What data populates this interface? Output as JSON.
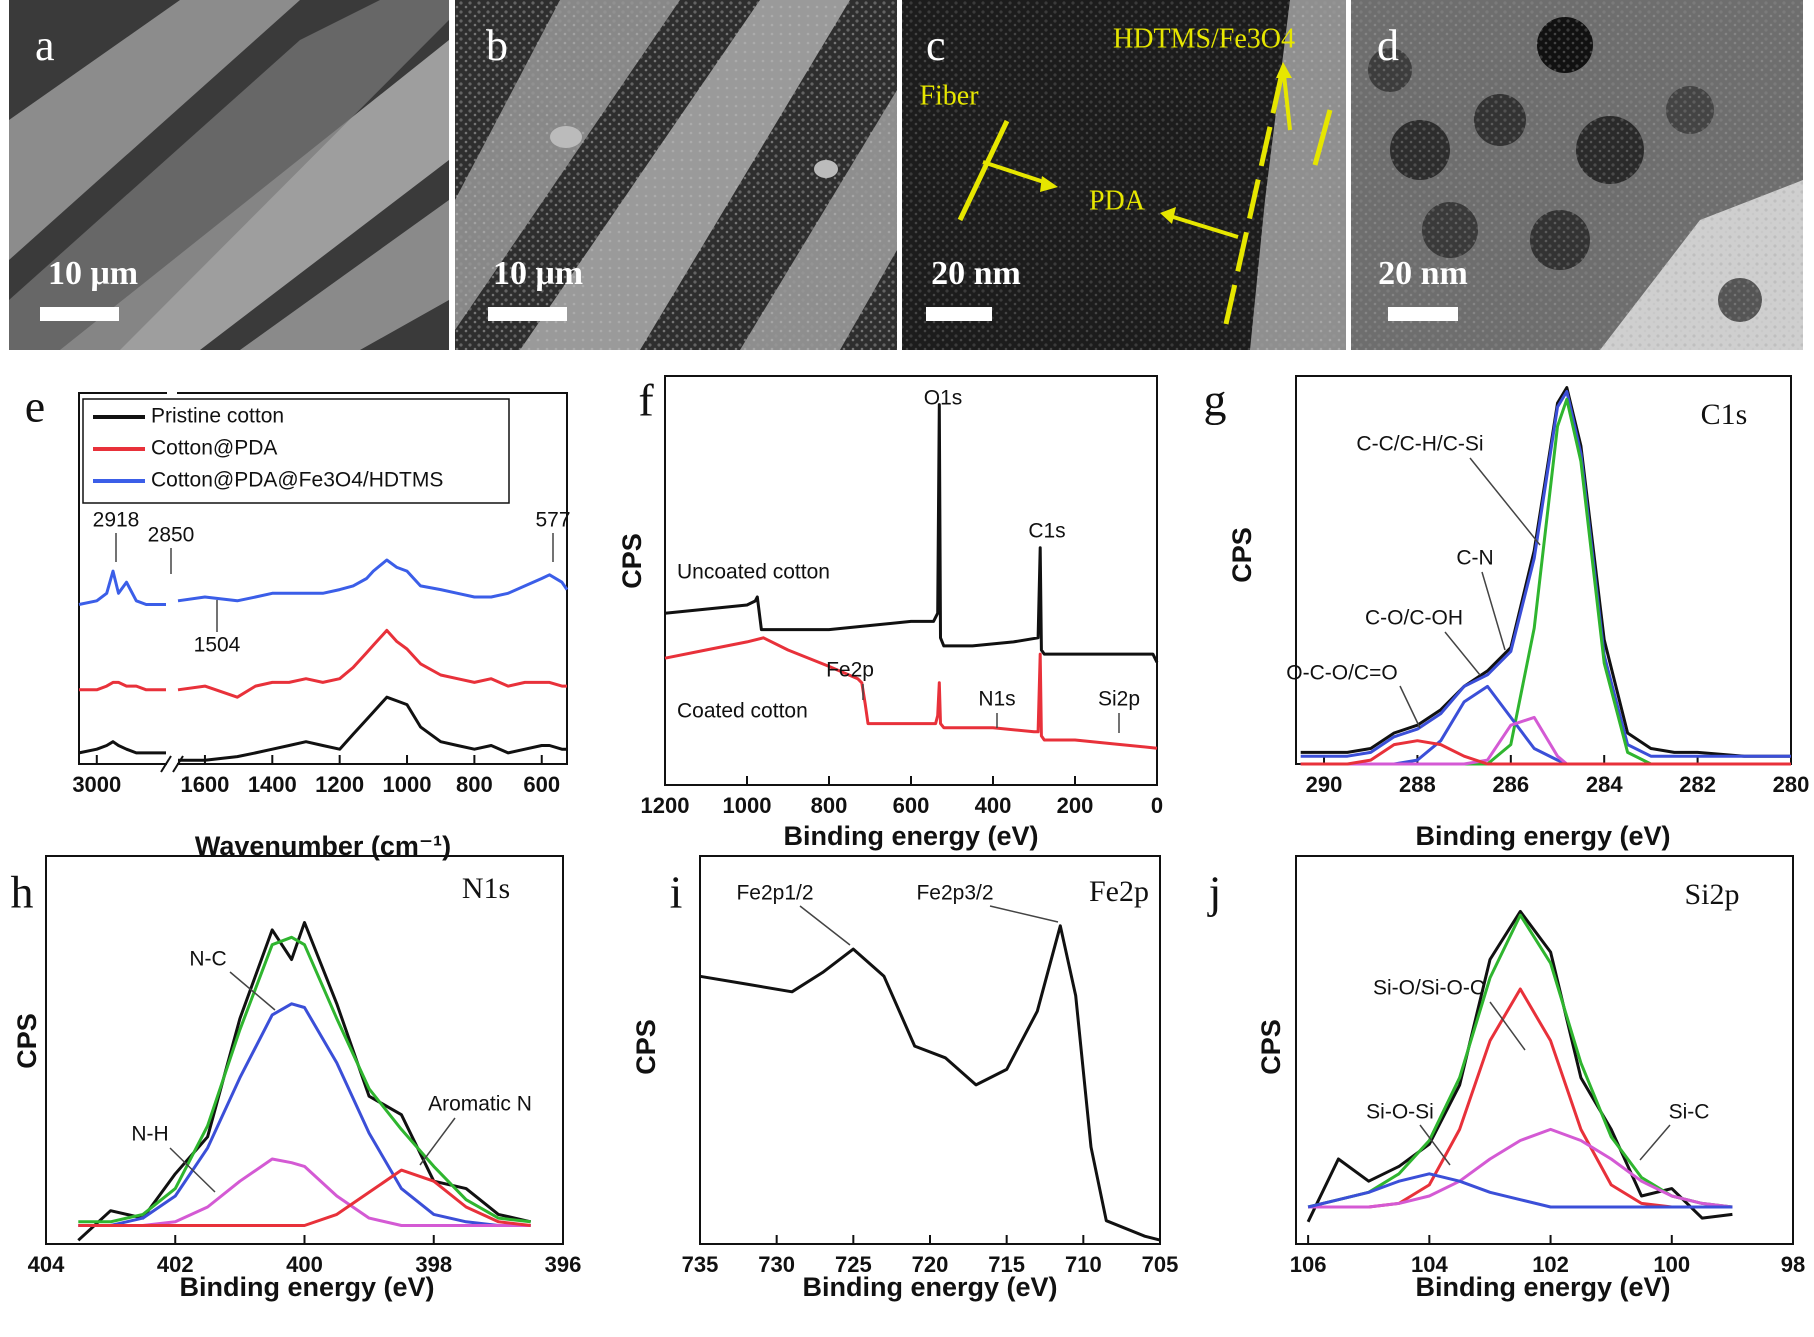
{
  "micrographs": [
    {
      "label": "a",
      "scale": "10 μm"
    },
    {
      "label": "b",
      "scale": "10 μm"
    },
    {
      "label": "c",
      "scale": "20 nm",
      "annotations": [
        "Fiber",
        "PDA",
        "HDTMS/Fe3O4"
      ]
    },
    {
      "label": "d",
      "scale": "20 nm"
    }
  ],
  "chart_data": [
    {
      "panel": "e",
      "type": "line",
      "x_label": "Wavenumber (cm⁻¹)",
      "x_segments": [
        {
          "xlim": [
            3090,
            2650
          ],
          "xticks": [
            3000
          ]
        },
        {
          "xlim": [
            1680,
            525
          ],
          "xticks": [
            1600,
            1400,
            1200,
            1000,
            800,
            600
          ]
        }
      ],
      "ylim": [
        0,
        100
      ],
      "legend": "upper left",
      "x": [
        3090,
        3000,
        2950,
        2918,
        2890,
        2850,
        2800,
        2750,
        2700,
        2650,
        null,
        1680,
        1600,
        1504,
        1450,
        1400,
        1350,
        1300,
        1250,
        1200,
        1160,
        1120,
        1100,
        1060,
        1030,
        1000,
        960,
        900,
        850,
        800,
        750,
        700,
        650,
        600,
        577,
        540,
        525
      ],
      "series": [
        {
          "name": "Pristine cotton",
          "color": "#111111",
          "values": [
            3,
            4,
            5,
            6,
            5,
            4,
            3,
            3,
            3,
            3,
            null,
            1,
            1,
            2,
            3,
            4,
            5,
            6,
            5,
            4,
            8,
            12,
            14,
            18,
            17,
            16,
            10,
            6,
            5,
            4,
            5,
            3,
            4,
            5,
            5,
            4,
            4
          ]
        },
        {
          "name": "Cotton@PDA",
          "color": "#e8313a",
          "values": [
            20,
            20,
            21,
            22,
            22,
            21,
            21,
            20,
            20,
            20,
            null,
            20,
            21,
            18,
            21,
            22,
            22,
            23,
            22,
            23,
            26,
            30,
            32,
            36,
            33,
            31,
            27,
            24,
            23,
            22,
            23,
            21,
            22,
            22,
            22,
            21,
            21
          ]
        },
        {
          "name": "Cotton@PDA@Fe3O4/HDTMS",
          "color": "#3b5ee8",
          "values": [
            43,
            44,
            46,
            52,
            46,
            49,
            44,
            43,
            43,
            43,
            null,
            44,
            45,
            44,
            45,
            46,
            46,
            46,
            46,
            47,
            48,
            50,
            52,
            55,
            53,
            52,
            48,
            47,
            46,
            45,
            45,
            46,
            48,
            50,
            51,
            49,
            47
          ]
        }
      ],
      "annotations": [
        "2918",
        "2850",
        "577",
        "1504"
      ]
    },
    {
      "panel": "f",
      "type": "line",
      "x_label": "Binding energy (eV)",
      "y_label": "CPS",
      "xlim": [
        1200,
        0
      ],
      "xticks": [
        1200,
        1000,
        800,
        600,
        400,
        200,
        0
      ],
      "ylim": [
        0,
        100
      ],
      "series": [
        {
          "color": "#111111",
          "x": [
            1200,
            1100,
            1000,
            980,
            975,
            965,
            900,
            800,
            700,
            600,
            545,
            535,
            531,
            528,
            520,
            450,
            350,
            290,
            285,
            282,
            275,
            200,
            100,
            10,
            0
          ],
          "values": [
            42,
            43,
            44,
            45,
            46,
            38,
            38,
            38,
            39,
            40,
            40,
            42,
            93,
            36,
            34,
            34,
            35,
            36,
            58,
            33,
            32,
            32,
            32,
            32,
            30
          ]
        },
        {
          "color": "#e8313a",
          "x": [
            1200,
            1100,
            1000,
            960,
            900,
            800,
            730,
            720,
            712,
            705,
            700,
            600,
            540,
            535,
            531,
            528,
            520,
            400,
            300,
            290,
            285,
            282,
            275,
            200,
            100,
            0
          ],
          "values": [
            31,
            33,
            35,
            36,
            33,
            29,
            26,
            25,
            20,
            15,
            15,
            15,
            15,
            17,
            25,
            15,
            14,
            14,
            13,
            13,
            32,
            12,
            11,
            11,
            10,
            9
          ]
        }
      ],
      "annotations": [
        "O1s",
        "C1s",
        "Uncoated cotton",
        "Coated cotton",
        "Fe2p",
        "N1s",
        "Si2p"
      ]
    },
    {
      "panel": "g",
      "type": "line",
      "x_label": "Binding energy (eV)",
      "y_label": "CPS",
      "xlim": [
        290.6,
        280
      ],
      "xticks": [
        290,
        288,
        286,
        284,
        282,
        280
      ],
      "ylim": [
        0,
        100
      ],
      "x": [
        290.5,
        290,
        289.5,
        289,
        288.5,
        288,
        287.5,
        287,
        286.5,
        286,
        285.5,
        285,
        284.8,
        284.5,
        284,
        283.5,
        283,
        282.5,
        282,
        281,
        280
      ],
      "series": [
        {
          "color": "#111111",
          "values": [
            3,
            3,
            3,
            4,
            8,
            10,
            14,
            20,
            24,
            30,
            55,
            93,
            97,
            82,
            32,
            8,
            4,
            3,
            3,
            2,
            2
          ]
        },
        {
          "color": "#3b4fd8",
          "values": [
            2,
            2,
            2,
            3,
            7,
            9,
            13,
            20,
            23,
            29,
            53,
            92,
            96,
            80,
            28,
            5,
            2,
            2,
            2,
            2,
            2
          ]
        },
        {
          "color": "#2fb52f",
          "values": [
            0,
            0,
            0,
            0,
            0,
            0,
            0,
            0,
            0,
            5,
            35,
            87,
            94,
            78,
            26,
            3,
            0,
            0,
            0,
            0,
            0
          ]
        },
        {
          "color": "#3b4fd8",
          "values": [
            0,
            0,
            0,
            0,
            0,
            1,
            6,
            16,
            20,
            12,
            4,
            1,
            0,
            0,
            0,
            0,
            0,
            0,
            0,
            0,
            0
          ]
        },
        {
          "color": "#d45ad4",
          "values": [
            0,
            0,
            0,
            0,
            0,
            0,
            0,
            0,
            1,
            10,
            12,
            2,
            0,
            0,
            0,
            0,
            0,
            0,
            0,
            0,
            0
          ]
        },
        {
          "color": "#e8313a",
          "values": [
            0,
            0,
            0,
            1,
            5,
            6,
            5,
            2,
            0,
            0,
            0,
            0,
            0,
            0,
            0,
            0,
            0,
            0,
            0,
            0,
            0
          ]
        }
      ],
      "annotations": [
        "C1s",
        "C-C/C-H/C-Si",
        "C-N",
        "C-O/C-OH",
        "O-C-O/C=O"
      ]
    },
    {
      "panel": "h",
      "type": "line",
      "x_label": "Binding energy (eV)",
      "y_label": "CPS",
      "xlim": [
        404,
        396
      ],
      "xticks": [
        404,
        402,
        400,
        398,
        396
      ],
      "ylim": [
        -5,
        100
      ],
      "x": [
        403.5,
        403,
        402.5,
        402,
        401.5,
        401,
        400.5,
        400.2,
        400,
        399.5,
        399,
        398.5,
        398,
        397.5,
        397,
        396.5
      ],
      "series": [
        {
          "color": "#111111",
          "values": [
            -4,
            4,
            2,
            14,
            24,
            56,
            80,
            72,
            82,
            60,
            35,
            30,
            12,
            10,
            3,
            1
          ]
        },
        {
          "color": "#2fb52f",
          "values": [
            1,
            1,
            3,
            10,
            27,
            53,
            76,
            78,
            76,
            56,
            37,
            26,
            16,
            7,
            2,
            1
          ]
        },
        {
          "color": "#3b4fd8",
          "values": [
            0,
            0,
            2,
            8,
            21,
            40,
            57,
            60,
            59,
            44,
            25,
            10,
            3,
            1,
            0,
            0
          ]
        },
        {
          "color": "#d45ad4",
          "values": [
            0,
            0,
            0,
            1,
            5,
            12,
            18,
            17,
            16,
            8,
            2,
            0,
            0,
            0,
            0,
            0
          ]
        },
        {
          "color": "#e8313a",
          "values": [
            0,
            0,
            0,
            0,
            0,
            0,
            0,
            0,
            0,
            3,
            9,
            15,
            12,
            5,
            1,
            0
          ]
        }
      ],
      "annotations": [
        "N1s",
        "N-C",
        "N-H",
        "Aromatic N"
      ]
    },
    {
      "panel": "i",
      "type": "line",
      "x_label": "Binding energy (eV)",
      "y_label": "CPS",
      "xlim": [
        735,
        705
      ],
      "xticks": [
        735,
        730,
        725,
        720,
        715,
        710,
        705
      ],
      "ylim": [
        0,
        100
      ],
      "x": [
        735,
        732,
        729,
        727,
        725,
        723,
        721,
        719,
        717,
        715,
        713,
        711.5,
        710.5,
        709.5,
        708.5,
        706,
        705
      ],
      "series": [
        {
          "color": "#111111",
          "values": [
            69,
            67,
            65,
            70,
            76,
            69,
            51,
            48,
            41,
            45,
            60,
            82,
            64,
            25,
            6,
            2,
            1
          ]
        }
      ],
      "annotations": [
        "Fe2p",
        "Fe2p1/2",
        "Fe2p3/2"
      ]
    },
    {
      "panel": "j",
      "type": "line",
      "x_label": "Binding energy (eV)",
      "y_label": "CPS",
      "xlim": [
        106.2,
        98
      ],
      "xticks": [
        106,
        104,
        102,
        100,
        98
      ],
      "ylim": [
        -5,
        100
      ],
      "x": [
        106,
        105.5,
        105,
        104.5,
        104,
        103.5,
        103,
        102.5,
        102,
        101.5,
        101,
        100.5,
        100,
        99.5,
        99
      ],
      "series": [
        {
          "color": "#111111",
          "values": [
            1,
            18,
            12,
            16,
            22,
            38,
            72,
            85,
            74,
            40,
            26,
            8,
            10,
            2,
            3
          ]
        },
        {
          "color": "#2fb52f",
          "values": [
            5,
            7,
            9,
            14,
            23,
            40,
            67,
            84,
            71,
            44,
            24,
            13,
            8,
            6,
            5
          ]
        },
        {
          "color": "#e8313a",
          "values": [
            5,
            5,
            5,
            6,
            11,
            26,
            50,
            64,
            50,
            26,
            11,
            6,
            5,
            5,
            5
          ]
        },
        {
          "color": "#d45ad4",
          "values": [
            5,
            5,
            5,
            6,
            8,
            12,
            18,
            23,
            26,
            23,
            18,
            12,
            8,
            6,
            5
          ]
        },
        {
          "color": "#3b4fd8",
          "values": [
            5,
            7,
            9,
            12,
            14,
            12,
            9,
            7,
            5,
            5,
            5,
            5,
            5,
            5,
            5
          ]
        }
      ],
      "annotations": [
        "Si2p",
        "Si-O/Si-O-C",
        "Si-O-Si",
        "Si-C"
      ]
    }
  ]
}
